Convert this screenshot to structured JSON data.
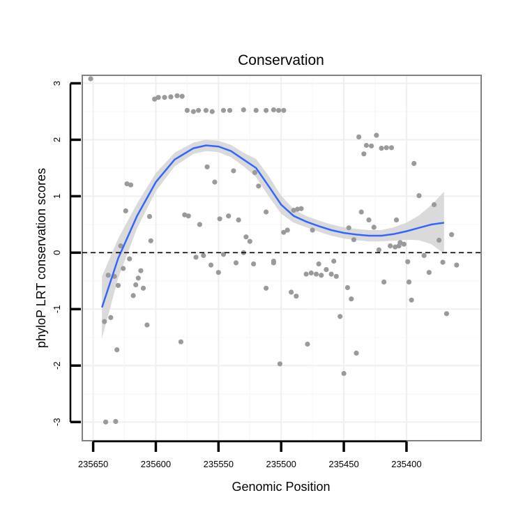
{
  "chart_data": {
    "type": "scatter",
    "title": "Conservation",
    "xlabel": "Genomic Position",
    "ylabel": "phyloP LRT conservation scores",
    "x_reversed": true,
    "xlim": [
      235356,
      235652
    ],
    "ylim": [
      -3.22,
      3.08
    ],
    "x_ticks": [
      235650,
      235600,
      235550,
      235500,
      235450,
      235400
    ],
    "y_ticks": [
      -3,
      -2,
      -1,
      0,
      1,
      2,
      3
    ],
    "reference_line": {
      "y": 0,
      "style": "dashed"
    },
    "point_color": "#9a9a9a",
    "line_color": "#3366ff",
    "ribbon_color": "#d3d3d3",
    "points": [
      [
        235652,
        3.08
      ],
      [
        235640,
        -3.0
      ],
      [
        235632,
        -2.99
      ],
      [
        235641,
        -1.22
      ],
      [
        235636,
        -1.15
      ],
      [
        235633,
        -0.42
      ],
      [
        235638,
        -0.4
      ],
      [
        235628,
        0.12
      ],
      [
        235624,
        0.74
      ],
      [
        235620,
        1.2
      ],
      [
        235623,
        1.22
      ],
      [
        235626,
        -0.28
      ],
      [
        235630,
        -0.58
      ],
      [
        235621,
        -0.11
      ],
      [
        235618,
        -0.76
      ],
      [
        235616,
        -0.57
      ],
      [
        235614,
        -0.45
      ],
      [
        235612,
        -0.32
      ],
      [
        235610,
        -0.63
      ],
      [
        235607,
        -1.28
      ],
      [
        235605,
        0.64
      ],
      [
        235604,
        0.21
      ],
      [
        235601,
        2.72
      ],
      [
        235598,
        2.75
      ],
      [
        235593,
        2.75
      ],
      [
        235588,
        2.76
      ],
      [
        235583,
        2.78
      ],
      [
        235579,
        2.77
      ],
      [
        235575,
        2.52
      ],
      [
        235570,
        2.5
      ],
      [
        235566,
        2.52
      ],
      [
        235560,
        2.52
      ],
      [
        235555,
        2.5
      ],
      [
        235546,
        2.52
      ],
      [
        235541,
        2.52
      ],
      [
        235530,
        2.53
      ],
      [
        235520,
        2.52
      ],
      [
        235512,
        2.52
      ],
      [
        235506,
        2.53
      ],
      [
        235502,
        2.52
      ],
      [
        235498,
        2.52
      ],
      [
        235577,
        0.67
      ],
      [
        235574,
        0.65
      ],
      [
        235565,
        0.5
      ],
      [
        235559,
        1.52
      ],
      [
        235553,
        1.25
      ],
      [
        235549,
        0.6
      ],
      [
        235542,
        0.65
      ],
      [
        235538,
        1.45
      ],
      [
        235534,
        0.58
      ],
      [
        235528,
        0.28
      ],
      [
        235525,
        0.2
      ],
      [
        235521,
        1.42
      ],
      [
        235518,
        1.18
      ],
      [
        235512,
        0.72
      ],
      [
        235506,
        -0.18
      ],
      [
        235501,
        -1.97
      ],
      [
        235498,
        0.36
      ],
      [
        235495,
        0.4
      ],
      [
        235490,
        0.75
      ],
      [
        235487,
        0.77
      ],
      [
        235484,
        0.78
      ],
      [
        235480,
        -0.38
      ],
      [
        235476,
        -0.36
      ],
      [
        235472,
        -0.38
      ],
      [
        235468,
        -0.4
      ],
      [
        235464,
        -0.3
      ],
      [
        235460,
        -0.38
      ],
      [
        235456,
        -0.42
      ],
      [
        235453,
        -1.13
      ],
      [
        235450,
        -2.14
      ],
      [
        235447,
        -0.62
      ],
      [
        235444,
        -0.82
      ],
      [
        235440,
        -1.78
      ],
      [
        235436,
        0.72
      ],
      [
        235432,
        1.9
      ],
      [
        235428,
        1.89
      ],
      [
        235424,
        2.08
      ],
      [
        235420,
        1.85
      ],
      [
        235416,
        1.86
      ],
      [
        235412,
        1.86
      ],
      [
        235409,
        0.1
      ],
      [
        235406,
        0.12
      ],
      [
        235402,
        0.15
      ],
      [
        235398,
        -0.52
      ],
      [
        235396,
        -0.84
      ],
      [
        235394,
        1.58
      ],
      [
        235390,
        1.01
      ],
      [
        235386,
        -0.05
      ],
      [
        235382,
        -0.35
      ],
      [
        235378,
        0.85
      ],
      [
        235374,
        0.22
      ],
      [
        235371,
        -0.17
      ],
      [
        235368,
        -1.08
      ],
      [
        235364,
        0.32
      ],
      [
        235360,
        -0.22
      ],
      [
        235631,
        -1.72
      ],
      [
        235580,
        -1.58
      ],
      [
        235568,
        -0.08
      ],
      [
        235562,
        -0.05
      ],
      [
        235556,
        -0.22
      ],
      [
        235550,
        -0.35
      ],
      [
        235546,
        -0.03
      ],
      [
        235536,
        -0.18
      ],
      [
        235530,
        0.0
      ],
      [
        235522,
        -0.2
      ],
      [
        235512,
        -0.63
      ],
      [
        235506,
        -0.15
      ],
      [
        235492,
        -0.7
      ],
      [
        235488,
        -0.77
      ],
      [
        235479,
        -1.62
      ],
      [
        235475,
        0.4
      ],
      [
        235470,
        -0.2
      ],
      [
        235458,
        -0.15
      ],
      [
        235446,
        0.44
      ],
      [
        235442,
        0.23
      ],
      [
        235438,
        2.05
      ],
      [
        235434,
        1.75
      ],
      [
        235430,
        0.58
      ],
      [
        235426,
        0.45
      ],
      [
        235422,
        0.05
      ],
      [
        235418,
        -0.52
      ],
      [
        235413,
        0.12
      ],
      [
        235408,
        0.58
      ],
      [
        235405,
        0.18
      ],
      [
        235399,
        -0.16
      ]
    ],
    "smooth_line": [
      [
        235643,
        -0.97
      ],
      [
        235630,
        -0.1
      ],
      [
        235615,
        0.65
      ],
      [
        235600,
        1.25
      ],
      [
        235585,
        1.65
      ],
      [
        235570,
        1.85
      ],
      [
        235560,
        1.9
      ],
      [
        235550,
        1.88
      ],
      [
        235540,
        1.8
      ],
      [
        235530,
        1.65
      ],
      [
        235520,
        1.5
      ],
      [
        235510,
        1.18
      ],
      [
        235500,
        0.85
      ],
      [
        235490,
        0.65
      ],
      [
        235480,
        0.55
      ],
      [
        235470,
        0.47
      ],
      [
        235460,
        0.4
      ],
      [
        235450,
        0.35
      ],
      [
        235440,
        0.32
      ],
      [
        235430,
        0.3
      ],
      [
        235420,
        0.3
      ],
      [
        235410,
        0.33
      ],
      [
        235400,
        0.38
      ],
      [
        235390,
        0.44
      ],
      [
        235380,
        0.5
      ],
      [
        235370,
        0.53
      ]
    ],
    "band_half_width": [
      0.55,
      0.35,
      0.22,
      0.16,
      0.12,
      0.1,
      0.1,
      0.1,
      0.11,
      0.12,
      0.16,
      0.18,
      0.16,
      0.12,
      0.1,
      0.1,
      0.1,
      0.1,
      0.1,
      0.1,
      0.1,
      0.12,
      0.15,
      0.22,
      0.35,
      0.55
    ]
  }
}
